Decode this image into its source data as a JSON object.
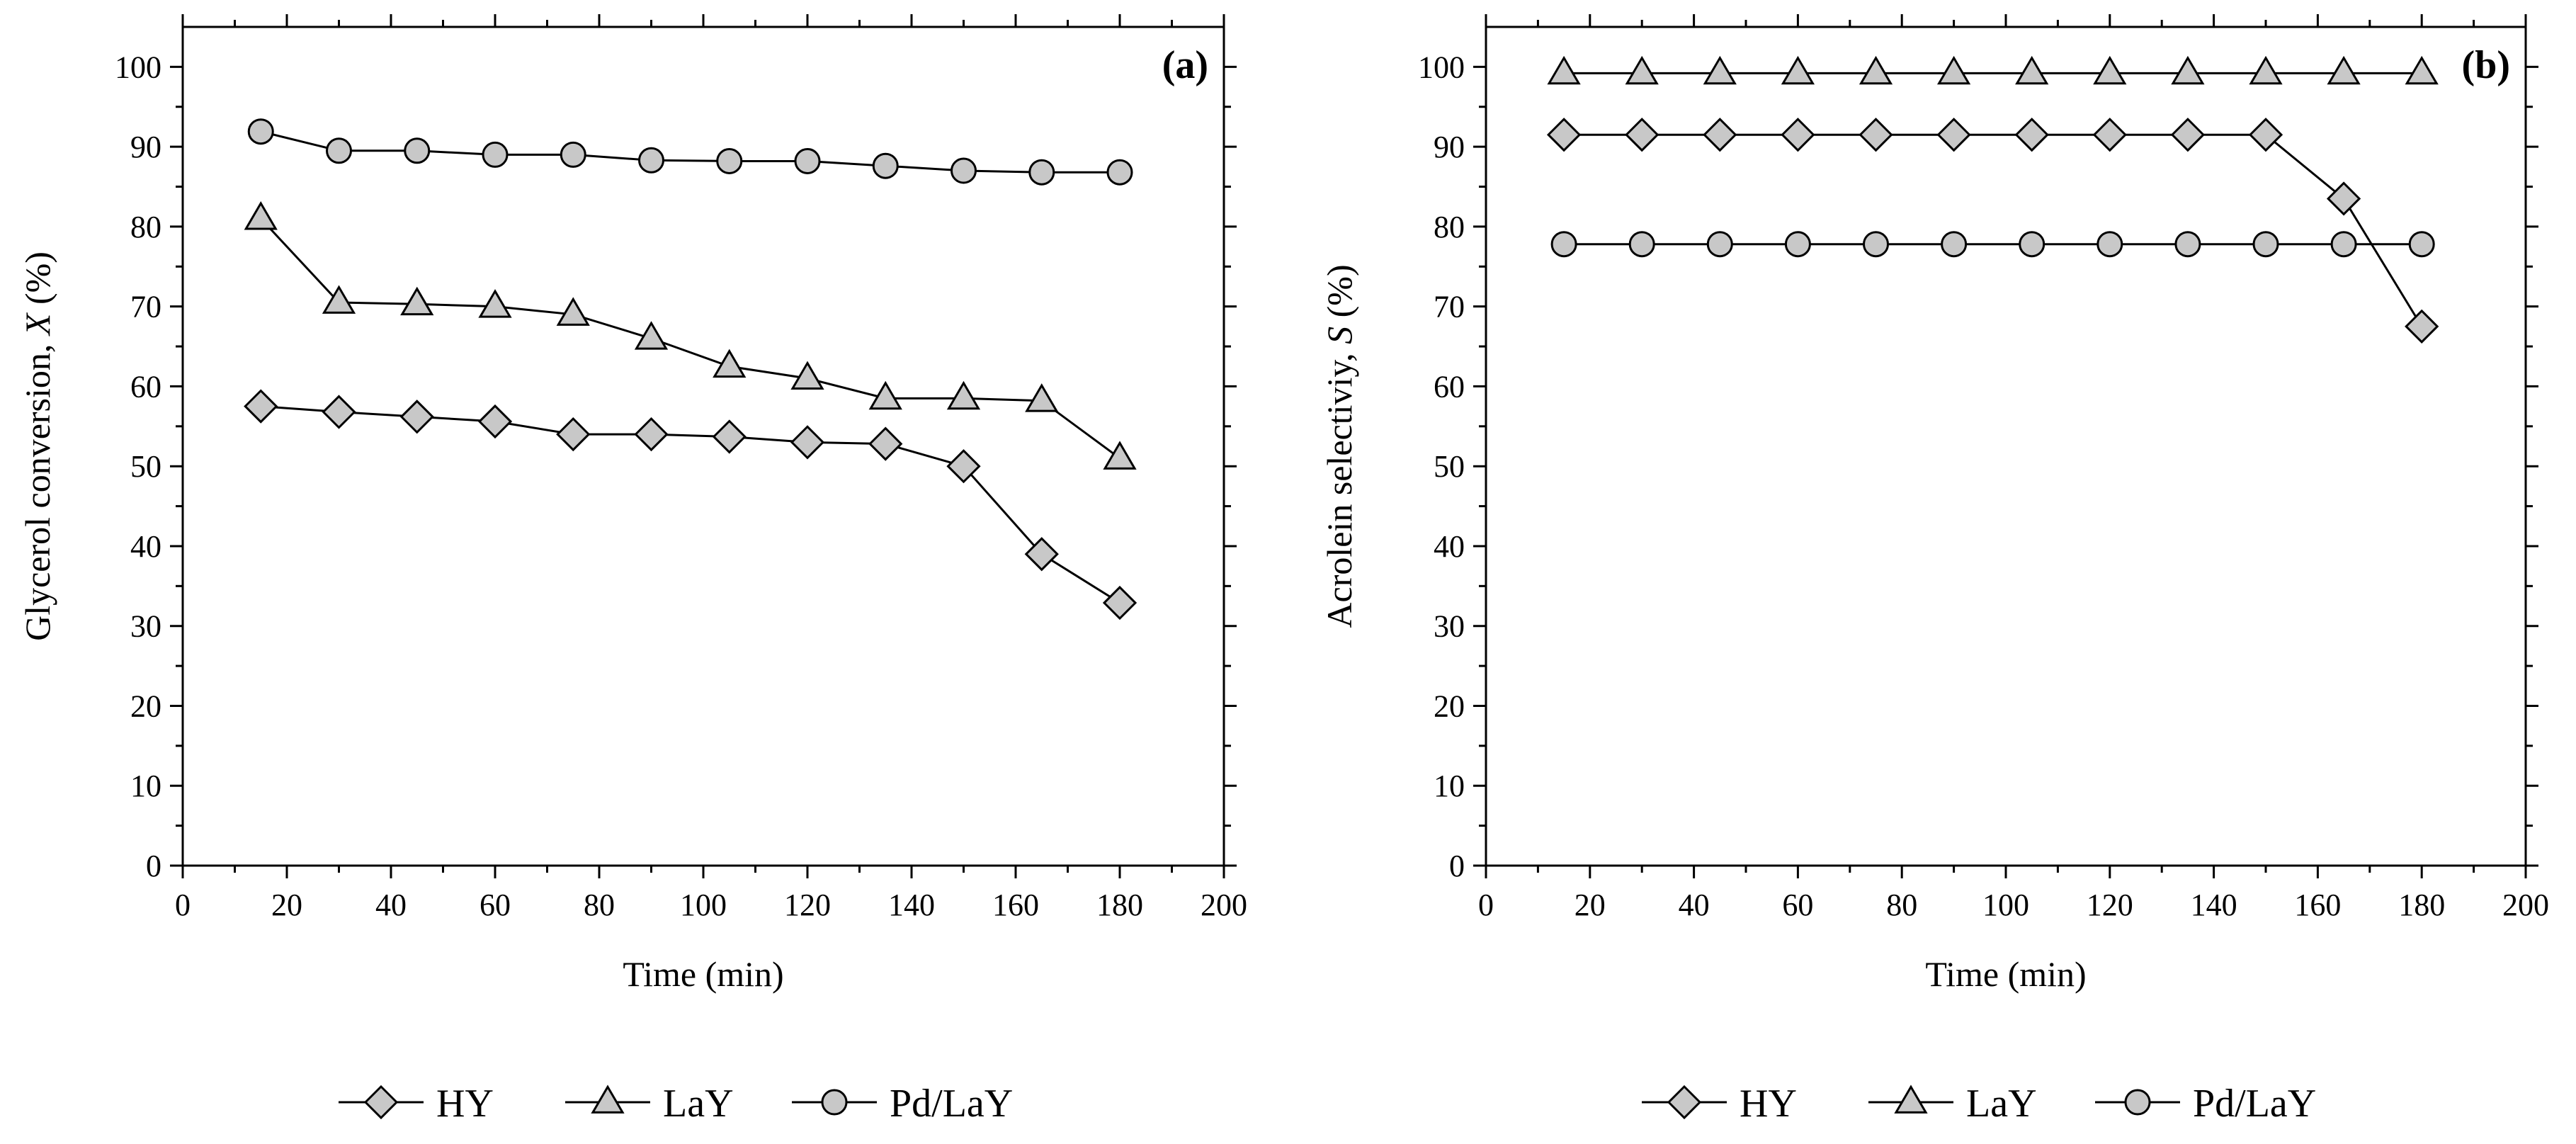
{
  "chart_data": [
    {
      "type": "line",
      "panel_label": "(a)",
      "xlabel": "Time (min)",
      "ylabel": "Glycerol conversion, X (%)",
      "ylabel_prefix": "Glycerol conversion, ",
      "ylabel_var": "X",
      "ylabel_suffix": " (%)",
      "xlim": [
        0,
        200
      ],
      "ylim": [
        0,
        105
      ],
      "xticks": [
        0,
        20,
        40,
        60,
        80,
        100,
        120,
        140,
        160,
        180,
        200
      ],
      "yticks": [
        0,
        10,
        20,
        30,
        40,
        50,
        60,
        70,
        80,
        90,
        100
      ],
      "x": [
        15,
        30,
        45,
        60,
        75,
        90,
        105,
        120,
        135,
        150,
        165,
        180
      ],
      "series": [
        {
          "name": "HY",
          "marker": "diamond",
          "values": [
            57.5,
            56.8,
            56.2,
            55.6,
            54.0,
            54.0,
            53.7,
            53.0,
            52.8,
            50.0,
            39.0,
            32.9
          ]
        },
        {
          "name": "LaY",
          "marker": "triangle",
          "values": [
            81.0,
            70.5,
            70.3,
            70.0,
            69.0,
            66.0,
            62.5,
            61.0,
            58.5,
            58.5,
            58.2,
            51.0
          ]
        },
        {
          "name": "Pd/LaY",
          "marker": "circle",
          "values": [
            91.9,
            89.5,
            89.5,
            89.0,
            89.0,
            88.3,
            88.2,
            88.2,
            87.6,
            87.0,
            86.8,
            86.8
          ]
        }
      ],
      "legend": [
        "HY",
        "LaY",
        "Pd/LaY"
      ]
    },
    {
      "type": "line",
      "panel_label": "(b)",
      "xlabel": "Time (min)",
      "ylabel": "Acrolein selectiviy, S (%)",
      "ylabel_prefix": "Acrolein selectiviy, ",
      "ylabel_var": "S",
      "ylabel_suffix": " (%)",
      "xlim": [
        0,
        200
      ],
      "ylim": [
        0,
        105
      ],
      "xticks": [
        0,
        20,
        40,
        60,
        80,
        100,
        120,
        140,
        160,
        180,
        200
      ],
      "yticks": [
        0,
        10,
        20,
        30,
        40,
        50,
        60,
        70,
        80,
        90,
        100
      ],
      "x": [
        15,
        30,
        45,
        60,
        75,
        90,
        105,
        120,
        135,
        150,
        165,
        180
      ],
      "series": [
        {
          "name": "HY",
          "marker": "diamond",
          "values": [
            91.5,
            91.5,
            91.5,
            91.5,
            91.5,
            91.5,
            91.5,
            91.5,
            91.5,
            91.5,
            83.5,
            67.5
          ]
        },
        {
          "name": "LaY",
          "marker": "triangle",
          "values": [
            99.2,
            99.2,
            99.2,
            99.2,
            99.2,
            99.2,
            99.2,
            99.2,
            99.2,
            99.2,
            99.2,
            99.2
          ]
        },
        {
          "name": "Pd/LaY",
          "marker": "circle",
          "values": [
            77.8,
            77.8,
            77.8,
            77.8,
            77.8,
            77.8,
            77.8,
            77.8,
            77.8,
            77.8,
            77.8,
            77.8
          ]
        }
      ],
      "legend": [
        "HY",
        "LaY",
        "Pd/LaY"
      ]
    }
  ]
}
